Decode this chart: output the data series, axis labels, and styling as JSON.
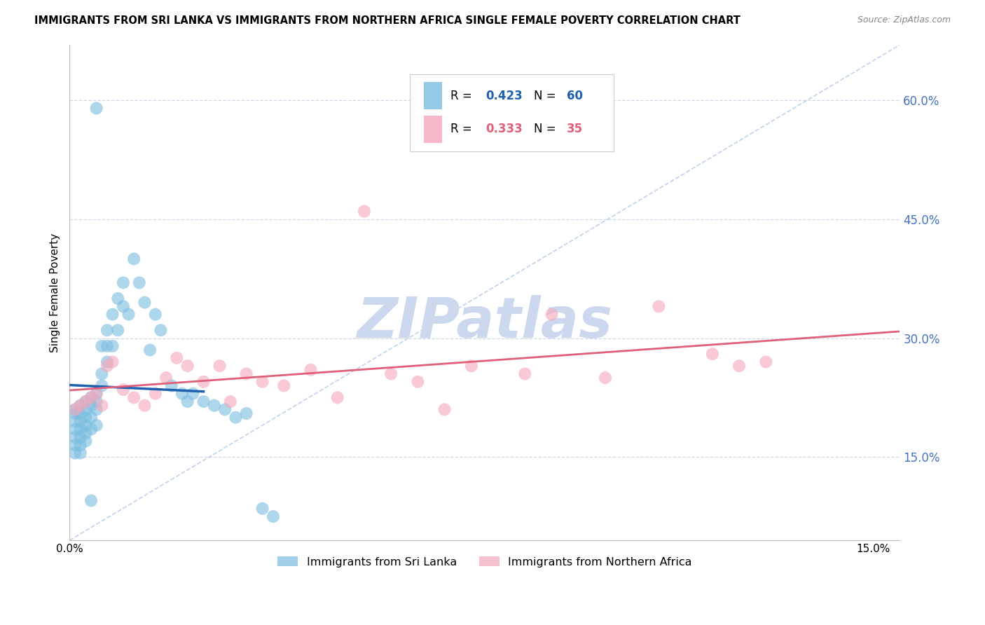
{
  "title": "IMMIGRANTS FROM SRI LANKA VS IMMIGRANTS FROM NORTHERN AFRICA SINGLE FEMALE POVERTY CORRELATION CHART",
  "source": "Source: ZipAtlas.com",
  "ylabel": "Single Female Poverty",
  "xlim": [
    0.0,
    0.155
  ],
  "ylim": [
    0.045,
    0.67
  ],
  "yticks": [
    0.15,
    0.3,
    0.45,
    0.6
  ],
  "ytick_labels": [
    "15.0%",
    "30.0%",
    "45.0%",
    "60.0%"
  ],
  "xticks": [
    0.0,
    0.03,
    0.06,
    0.09,
    0.12,
    0.15
  ],
  "xtick_labels": [
    "0.0%",
    "",
    "",
    "",
    "",
    "15.0%"
  ],
  "legend_r1": "R = 0.423",
  "legend_n1": "N = 60",
  "legend_r2": "R = 0.333",
  "legend_n2": "N = 35",
  "color_blue": "#7bbde0",
  "color_blue_line": "#2060b0",
  "color_pink": "#f5a8bc",
  "color_pink_line": "#e0607a",
  "color_dashed": "#b0c8e8",
  "color_axis_right": "#4472c4",
  "background": "#ffffff",
  "grid_color": "#d0d8e8",
  "watermark": "ZIPatlas",
  "watermark_color": "#ccd8ee",
  "sri_lanka_x": [
    0.001,
    0.001,
    0.001,
    0.001,
    0.001,
    0.001,
    0.001,
    0.002,
    0.002,
    0.002,
    0.002,
    0.002,
    0.002,
    0.002,
    0.003,
    0.003,
    0.003,
    0.003,
    0.003,
    0.003,
    0.004,
    0.004,
    0.004,
    0.004,
    0.005,
    0.005,
    0.005,
    0.005,
    0.006,
    0.006,
    0.006,
    0.007,
    0.007,
    0.007,
    0.008,
    0.008,
    0.009,
    0.009,
    0.01,
    0.01,
    0.011,
    0.012,
    0.013,
    0.014,
    0.015,
    0.016,
    0.017,
    0.019,
    0.021,
    0.022,
    0.023,
    0.025,
    0.027,
    0.029,
    0.031,
    0.033,
    0.036,
    0.038,
    0.005,
    0.004
  ],
  "sri_lanka_y": [
    0.21,
    0.205,
    0.195,
    0.185,
    0.175,
    0.165,
    0.155,
    0.215,
    0.205,
    0.195,
    0.185,
    0.175,
    0.165,
    0.155,
    0.22,
    0.21,
    0.2,
    0.19,
    0.18,
    0.17,
    0.225,
    0.215,
    0.2,
    0.185,
    0.23,
    0.22,
    0.21,
    0.19,
    0.29,
    0.255,
    0.24,
    0.31,
    0.29,
    0.27,
    0.33,
    0.29,
    0.35,
    0.31,
    0.37,
    0.34,
    0.33,
    0.4,
    0.37,
    0.345,
    0.285,
    0.33,
    0.31,
    0.24,
    0.23,
    0.22,
    0.23,
    0.22,
    0.215,
    0.21,
    0.2,
    0.205,
    0.085,
    0.075,
    0.59,
    0.095
  ],
  "north_africa_x": [
    0.001,
    0.002,
    0.003,
    0.004,
    0.005,
    0.006,
    0.007,
    0.01,
    0.012,
    0.014,
    0.016,
    0.018,
    0.02,
    0.022,
    0.025,
    0.028,
    0.03,
    0.033,
    0.036,
    0.04,
    0.045,
    0.05,
    0.055,
    0.06,
    0.065,
    0.07,
    0.075,
    0.085,
    0.09,
    0.1,
    0.11,
    0.12,
    0.125,
    0.13,
    0.008
  ],
  "north_africa_y": [
    0.21,
    0.215,
    0.22,
    0.225,
    0.23,
    0.215,
    0.265,
    0.235,
    0.225,
    0.215,
    0.23,
    0.25,
    0.275,
    0.265,
    0.245,
    0.265,
    0.22,
    0.255,
    0.245,
    0.24,
    0.26,
    0.225,
    0.46,
    0.255,
    0.245,
    0.21,
    0.265,
    0.255,
    0.33,
    0.25,
    0.34,
    0.28,
    0.265,
    0.27,
    0.27
  ]
}
